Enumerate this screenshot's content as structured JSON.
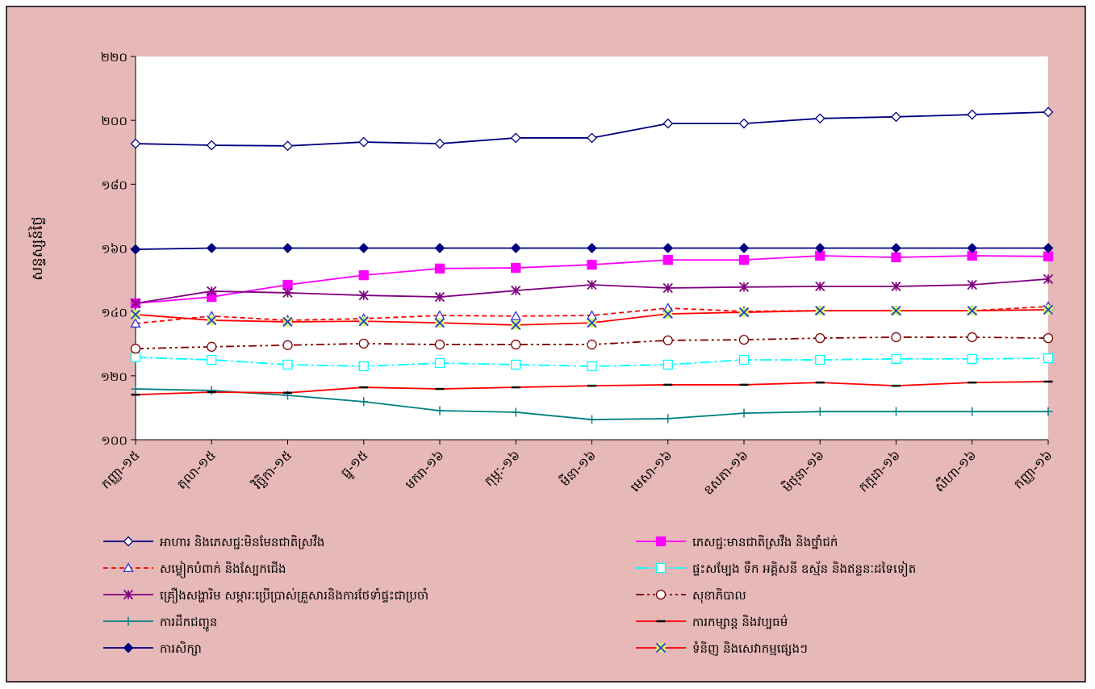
{
  "chart_data": {
    "type": "line",
    "ylabel": "សន្ទស្សន៍ថ្លៃ",
    "categories": [
      "កញ្ញា-១៥",
      "តុលា-១៥",
      "វិច្ឆិកា-១៥",
      "ធ្នូ-១៥",
      "មករា-១៦",
      "កុម្ភៈ-១៦",
      "មីនា-១៦",
      "មេសា-១៦",
      "ឧសភា-១៦",
      "មិថុនា-១៦",
      "កក្កដា-១៦",
      "សីហា-១៦",
      "កញ្ញា-១៦"
    ],
    "ylim": [
      100,
      220
    ],
    "yticks": [
      {
        "value": 100,
        "label": "១០០"
      },
      {
        "value": 120,
        "label": "១២០"
      },
      {
        "value": 140,
        "label": "១៤០"
      },
      {
        "value": 160,
        "label": "១៦០"
      },
      {
        "value": 180,
        "label": "១៨០"
      },
      {
        "value": 200,
        "label": "២០០"
      },
      {
        "value": 220,
        "label": "២២០"
      }
    ],
    "grid": false,
    "legend": "bottom",
    "series": [
      {
        "name": "អាហារ និងភេសជ្ជៈមិនមែនជាតិស្រវឹង",
        "color": "#000080",
        "dash": "solid",
        "marker": "diamond",
        "marker_fill": "#ffffff",
        "marker_stroke": "#000080",
        "values": [
          192.7,
          192.2,
          192.0,
          193.2,
          192.7,
          194.5,
          194.5,
          199.0,
          199.0,
          200.6,
          201.1,
          201.8,
          202.6
        ]
      },
      {
        "name": "ភេសជ្ជៈមានជាតិស្រវឹង និងថ្នាំជក់",
        "color": "#ff00ff",
        "dash": "solid",
        "marker": "square",
        "marker_fill": "#ff00ff",
        "marker_stroke": "#ff00ff",
        "values": [
          142.7,
          144.7,
          148.5,
          151.5,
          153.6,
          153.8,
          154.8,
          156.3,
          156.3,
          157.6,
          157.1,
          157.6,
          157.4
        ]
      },
      {
        "name": "សម្លៀកបំពាក់ និងស្បែកជើង",
        "color": "#ff0000",
        "dash": "dash",
        "marker": "triangle",
        "marker_fill": "#ffffff",
        "marker_stroke": "#3333cc",
        "values": [
          136.4,
          138.7,
          137.4,
          137.9,
          138.9,
          138.7,
          138.9,
          141.2,
          140.2,
          140.4,
          140.4,
          140.4,
          141.7
        ]
      },
      {
        "name": "ផ្ទះសម្បែង ទឹក អគ្គិសនី ឧស្ម័ន និងឥន្ទនៈដទៃទៀត",
        "color": "#00ffff",
        "dash": "dashdot",
        "marker": "square-open",
        "marker_fill": "#ffffff",
        "marker_stroke": "#00ffff",
        "values": [
          125.8,
          125.0,
          123.5,
          123.0,
          124.0,
          123.5,
          123.0,
          123.5,
          125.0,
          125.0,
          125.3,
          125.3,
          125.5
        ]
      },
      {
        "name": "គ្រឿងសង្ហារិម សម្ភារៈប្រើប្រាស់គ្រួសារនិងការថែទាំផ្ទះជាប្រចាំ",
        "color": "#800080",
        "dash": "solid",
        "marker": "asterisk",
        "marker_fill": "none",
        "marker_stroke": "#800080",
        "values": [
          142.7,
          146.5,
          146.0,
          145.2,
          144.7,
          146.7,
          148.5,
          147.5,
          147.8,
          148.0,
          148.0,
          148.5,
          150.3
        ]
      },
      {
        "name": "សុខាភិបាល",
        "color": "#800000",
        "dash": "dashdotdot",
        "marker": "circle",
        "marker_fill": "#ffffff",
        "marker_stroke": "#800000",
        "values": [
          128.5,
          129.1,
          129.6,
          130.1,
          129.8,
          129.8,
          129.8,
          131.1,
          131.3,
          131.8,
          132.1,
          132.1,
          131.8
        ]
      },
      {
        "name": "ការដឹកជញ្ជូន",
        "color": "#008080",
        "dash": "solid",
        "marker": "plus",
        "marker_fill": "none",
        "marker_stroke": "#008080",
        "values": [
          115.9,
          115.4,
          113.9,
          111.9,
          109.1,
          108.6,
          106.3,
          106.6,
          108.3,
          108.8,
          108.8,
          108.8,
          108.8
        ]
      },
      {
        "name": "ការកម្សាន្ត និងវប្បធម៌",
        "color": "#ff0000",
        "dash": "solid",
        "marker": "dash",
        "marker_fill": "none",
        "marker_stroke": "#000000",
        "values": [
          114.1,
          114.9,
          114.7,
          116.4,
          115.9,
          116.4,
          116.9,
          117.2,
          117.2,
          117.9,
          116.9,
          117.9,
          118.2
        ]
      },
      {
        "name": "ការសិក្សា",
        "color": "#000080",
        "dash": "solid",
        "marker": "diamond",
        "marker_fill": "#000080",
        "marker_stroke": "#000080",
        "values": [
          159.6,
          160,
          160,
          160,
          160,
          160,
          160,
          160,
          160,
          160,
          160,
          160,
          160
        ]
      },
      {
        "name": "ទំនិញ និងសេវាកម្មផ្សេងៗ",
        "color": "#ff0000",
        "dash": "solid",
        "marker": "x",
        "marker_fill": "#ccff66",
        "marker_stroke": "#3333cc",
        "values": [
          139.2,
          137.4,
          136.9,
          137.1,
          136.6,
          135.9,
          136.6,
          139.4,
          139.9,
          140.4,
          140.4,
          140.4,
          140.7
        ]
      }
    ]
  }
}
